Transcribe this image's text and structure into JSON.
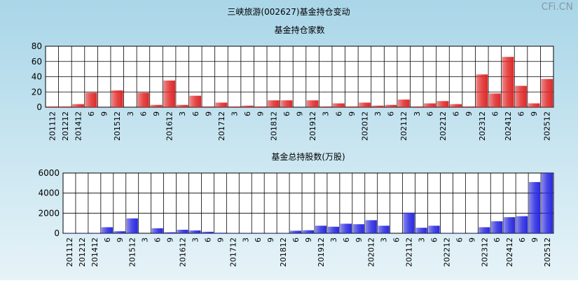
{
  "title": "三峡旅游(002627)基金持仓变动",
  "watermark": "CFi.CN",
  "chart_data": [
    {
      "type": "bar",
      "title": "基金持仓家数",
      "color": "#e02828",
      "categories": [
        "201112",
        "201212",
        "201412",
        "6",
        "9",
        "201512",
        "3",
        "6",
        "9",
        "201612",
        "3",
        "6",
        "9",
        "201712",
        "3",
        "6",
        "9",
        "201812",
        "6",
        "9",
        "201912",
        "3",
        "6",
        "9",
        "202012",
        "3",
        "6",
        "202112",
        "3",
        "6",
        "202212",
        "6",
        "9",
        "202312",
        "6",
        "202412",
        "6",
        "9",
        "202512"
      ],
      "values": [
        1,
        1,
        4,
        19,
        0,
        22,
        0,
        19,
        3,
        35,
        3,
        15,
        1,
        6,
        1,
        2,
        1,
        9,
        9,
        0,
        9,
        1,
        5,
        1,
        6,
        2,
        3,
        10,
        1,
        5,
        8,
        4,
        1,
        43,
        18,
        66,
        28,
        5,
        37
      ],
      "ylim": [
        0,
        80
      ],
      "yticks": [
        0,
        20,
        40,
        60,
        80
      ],
      "grid": true
    },
    {
      "type": "bar",
      "title": "基金总持股数(万股)",
      "color": "#2828e0",
      "categories": [
        "201112",
        "201212",
        "201412",
        "6",
        "9",
        "201512",
        "3",
        "6",
        "9",
        "201612",
        "3",
        "6",
        "9",
        "201712",
        "3",
        "6",
        "9",
        "201812",
        "6",
        "9",
        "201912",
        "3",
        "6",
        "9",
        "202012",
        "3",
        "6",
        "202112",
        "3",
        "6",
        "202212",
        "6",
        "9",
        "202312",
        "6",
        "202412",
        "6",
        "9",
        "202512"
      ],
      "values": [
        30,
        30,
        30,
        600,
        200,
        1480,
        0,
        500,
        100,
        350,
        280,
        150,
        50,
        30,
        30,
        20,
        30,
        30,
        250,
        300,
        750,
        650,
        950,
        900,
        1300,
        750,
        0,
        2050,
        550,
        750,
        30,
        30,
        30,
        600,
        1200,
        1600,
        1700,
        5100,
        6000
      ],
      "ylim": [
        0,
        6000
      ],
      "yticks": [
        0,
        2000,
        4000,
        6000
      ],
      "grid": true
    }
  ]
}
